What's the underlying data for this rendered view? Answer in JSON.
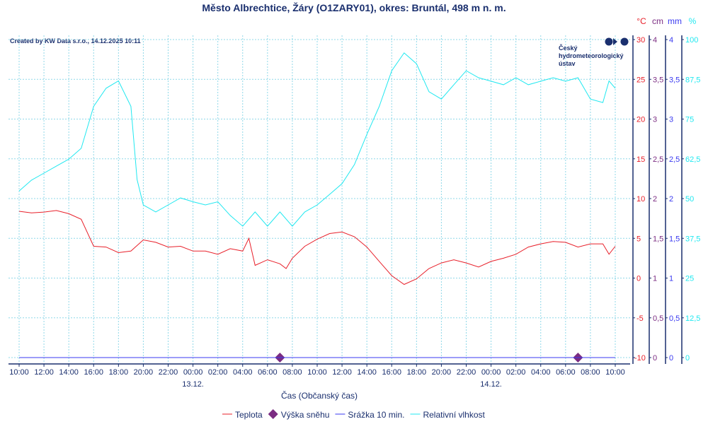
{
  "chart_data": {
    "type": "line",
    "title": "Město Albrechtice, Žáry (O1ZARY01), okres: Bruntál, 498 m n. m.",
    "credit": "Created by KW Data s.r.o., 14.12.2025 10:11",
    "logo_text": [
      "Český",
      "hydrometeorologický",
      "ústav"
    ],
    "xlabel": "Čas (Občanský čas)",
    "x_unit": "hours since 12.12. 10:00",
    "xlim": [
      0,
      48
    ],
    "x_ticks": [
      "10:00",
      "12:00",
      "14:00",
      "16:00",
      "18:00",
      "20:00",
      "22:00",
      "00:00",
      "02:00",
      "04:00",
      "06:00",
      "08:00",
      "10:00",
      "12:00",
      "14:00",
      "16:00",
      "18:00",
      "20:00",
      "22:00",
      "00:00",
      "02:00",
      "04:00",
      "06:00",
      "08:00",
      "10:00"
    ],
    "date_labels": [
      {
        "x": 14,
        "label": "13.12."
      },
      {
        "x": 38,
        "label": "14.12."
      }
    ],
    "axes": [
      {
        "unit": "°C",
        "color": "#e8202a",
        "ticks": [
          "30",
          "25",
          "20",
          "15",
          "10",
          "5",
          "0",
          "-5",
          "-10"
        ],
        "ylim": [
          -10,
          30
        ]
      },
      {
        "unit": "cm",
        "color": "#7b2c82",
        "ticks": [
          "4",
          "3,5",
          "3",
          "2,5",
          "2",
          "1,5",
          "1",
          "0,5",
          "0"
        ],
        "ylim": [
          0,
          4
        ]
      },
      {
        "unit": "mm",
        "color": "#3a3af0",
        "ticks": [
          "4",
          "3,5",
          "3",
          "2,5",
          "2",
          "1,5",
          "1",
          "0,5",
          "0"
        ],
        "ylim": [
          0,
          4
        ]
      },
      {
        "unit": "%",
        "color": "#20e8f0",
        "ticks": [
          "100",
          "87,5",
          "75",
          "62,5",
          "50",
          "37,5",
          "25",
          "12,5",
          "0"
        ],
        "ylim": [
          0,
          100
        ]
      }
    ],
    "grid": true,
    "legend_position": "bottom",
    "series": [
      {
        "name": "Teplota",
        "color": "#e8202a",
        "axis": 0,
        "x": [
          0,
          1,
          2,
          3,
          4,
          5,
          6,
          7,
          8,
          9,
          10,
          11,
          12,
          13,
          14,
          15,
          16,
          17,
          18,
          18.5,
          19,
          20,
          21,
          21.5,
          22,
          23,
          24,
          25,
          26,
          27,
          28,
          29,
          30,
          31,
          32,
          33,
          34,
          35,
          36,
          37,
          38,
          39,
          40,
          41,
          42,
          43,
          44,
          45,
          46,
          47,
          47.5,
          48
        ],
        "y": [
          8.4,
          8.2,
          8.3,
          8.5,
          8.1,
          7.4,
          4.0,
          3.9,
          3.2,
          3.4,
          4.8,
          4.5,
          3.9,
          4.0,
          3.4,
          3.4,
          3.0,
          3.7,
          3.4,
          5.0,
          1.6,
          2.3,
          1.8,
          1.2,
          2.5,
          4.0,
          4.9,
          5.6,
          5.8,
          5.2,
          3.9,
          2.1,
          0.3,
          -0.8,
          -0.1,
          1.2,
          1.9,
          2.3,
          1.9,
          1.4,
          2.1,
          2.5,
          3.0,
          3.9,
          4.3,
          4.6,
          4.5,
          3.9,
          4.3,
          4.3,
          3.0,
          4.0
        ]
      },
      {
        "name": "Výška sněhu",
        "color": "#7b2c82",
        "axis": 1,
        "marker": "diamond",
        "x": [
          21,
          45
        ],
        "y": [
          0,
          0
        ]
      },
      {
        "name": "Srážka 10 min.",
        "color": "#3a3af0",
        "axis": 2,
        "x": [
          0,
          48
        ],
        "y": [
          0,
          0
        ]
      },
      {
        "name": "Relativní vlhkost",
        "color": "#20e8f0",
        "axis": 3,
        "x": [
          0,
          1,
          2,
          3,
          4,
          5,
          6,
          7,
          8,
          9,
          9.5,
          10,
          11,
          12,
          13,
          14,
          15,
          16,
          17,
          18,
          19,
          20,
          21,
          22,
          23,
          24,
          25,
          26,
          27,
          28,
          29,
          30,
          31,
          32,
          33,
          34,
          35,
          36,
          37,
          38,
          39,
          40,
          41,
          42,
          43,
          44,
          45,
          46,
          47,
          47.5,
          48
        ],
        "y": [
          52.4,
          55.8,
          58,
          60.2,
          62.4,
          65.8,
          79,
          84.7,
          87,
          79,
          56,
          48,
          45.8,
          48,
          50.2,
          49,
          48,
          49,
          44.7,
          41.3,
          45.8,
          41.3,
          45.8,
          41.3,
          45.8,
          48,
          51.3,
          54.7,
          60.7,
          70.2,
          79,
          90.2,
          95.8,
          92.4,
          83.6,
          81.3,
          85.8,
          90.2,
          88,
          86.9,
          85.8,
          88,
          85.8,
          86.9,
          88,
          86.9,
          88,
          81.3,
          80.2,
          87,
          84.7
        ]
      }
    ]
  }
}
